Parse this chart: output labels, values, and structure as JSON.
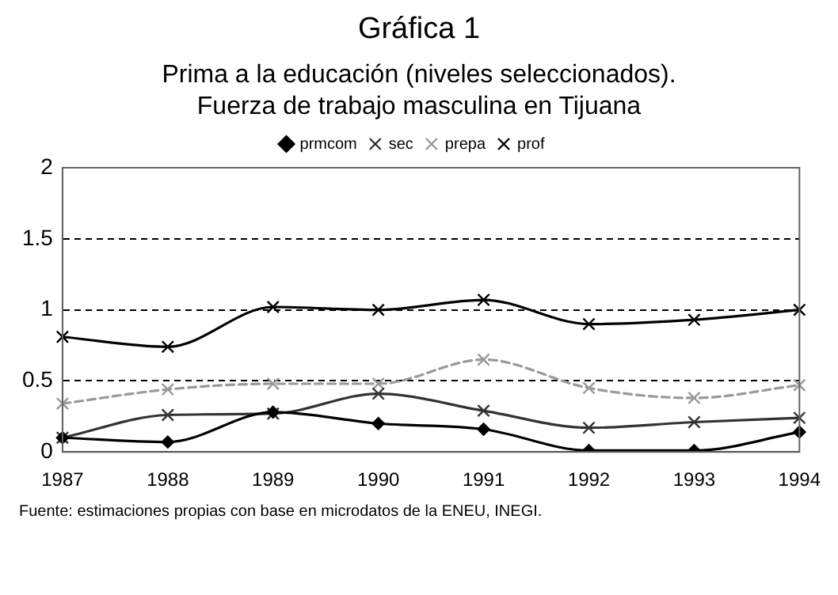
{
  "chart_data": {
    "type": "line",
    "title": "Gráfica 1",
    "subtitle": "Prima a la educación (niveles seleccionados).\nFuerza de trabajo masculina en Tijuana",
    "categories": [
      "1987",
      "1988",
      "1989",
      "1990",
      "1991",
      "1992",
      "1993",
      "1994"
    ],
    "series": [
      {
        "name": "prmcom",
        "color": "#000000",
        "marker": "diamond",
        "line_style": "solid",
        "values": [
          0.1,
          0.07,
          0.28,
          0.2,
          0.16,
          0.01,
          0.01,
          0.14
        ]
      },
      {
        "name": "sec",
        "color": "#333333",
        "marker": "cross",
        "line_style": "solid",
        "values": [
          0.1,
          0.26,
          0.27,
          0.41,
          0.29,
          0.17,
          0.21,
          0.24
        ]
      },
      {
        "name": "prepa",
        "color": "#999999",
        "marker": "cross",
        "line_style": "dashed",
        "values": [
          0.34,
          0.44,
          0.48,
          0.48,
          0.65,
          0.45,
          0.38,
          0.47
        ]
      },
      {
        "name": "prof",
        "color": "#000000",
        "marker": "cross",
        "line_style": "solid",
        "values": [
          0.81,
          0.74,
          1.02,
          1.0,
          1.07,
          0.9,
          0.93,
          1.0
        ]
      }
    ],
    "ylim": [
      0,
      2
    ],
    "yticks": [
      0,
      0.5,
      1,
      1.5,
      2
    ],
    "grid": "y",
    "legend": "top",
    "annotations": [
      "Fuente: estimaciones propias con base en microdatos de la ENEU, INEGI."
    ]
  }
}
